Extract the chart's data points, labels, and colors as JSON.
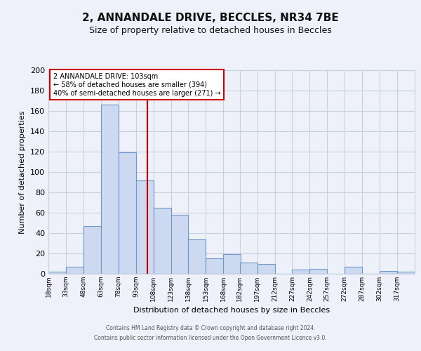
{
  "title": "2, ANNANDALE DRIVE, BECCLES, NR34 7BE",
  "subtitle": "Size of property relative to detached houses in Beccles",
  "xlabel": "Distribution of detached houses by size in Beccles",
  "ylabel": "Number of detached properties",
  "bar_labels": [
    "18sqm",
    "33sqm",
    "48sqm",
    "63sqm",
    "78sqm",
    "93sqm",
    "108sqm",
    "123sqm",
    "138sqm",
    "153sqm",
    "168sqm",
    "182sqm",
    "197sqm",
    "212sqm",
    "227sqm",
    "242sqm",
    "257sqm",
    "272sqm",
    "287sqm",
    "302sqm",
    "317sqm"
  ],
  "bar_values": [
    2,
    7,
    47,
    166,
    119,
    92,
    65,
    58,
    34,
    15,
    19,
    11,
    10,
    0,
    4,
    5,
    0,
    7,
    0,
    3,
    2
  ],
  "bin_edges": [
    18,
    33,
    48,
    63,
    78,
    93,
    108,
    123,
    138,
    153,
    168,
    182,
    197,
    212,
    227,
    242,
    257,
    272,
    287,
    302,
    317,
    332
  ],
  "bar_color": "#ccd9f0",
  "bar_edge_color": "#7098c8",
  "vline_x": 103,
  "vline_color": "#cc0000",
  "annotation_title": "2 ANNANDALE DRIVE: 103sqm",
  "annotation_line1": "← 58% of detached houses are smaller (394)",
  "annotation_line2": "40% of semi-detached houses are larger (271) →",
  "annotation_box_color": "#ffffff",
  "annotation_box_edge": "#cc0000",
  "ylim": [
    0,
    200
  ],
  "yticks": [
    0,
    20,
    40,
    60,
    80,
    100,
    120,
    140,
    160,
    180,
    200
  ],
  "grid_color": "#c8d0e0",
  "background_color": "#eef1fa",
  "footer1": "Contains HM Land Registry data © Crown copyright and database right 2024.",
  "footer2": "Contains public sector information licensed under the Open Government Licence v3.0."
}
